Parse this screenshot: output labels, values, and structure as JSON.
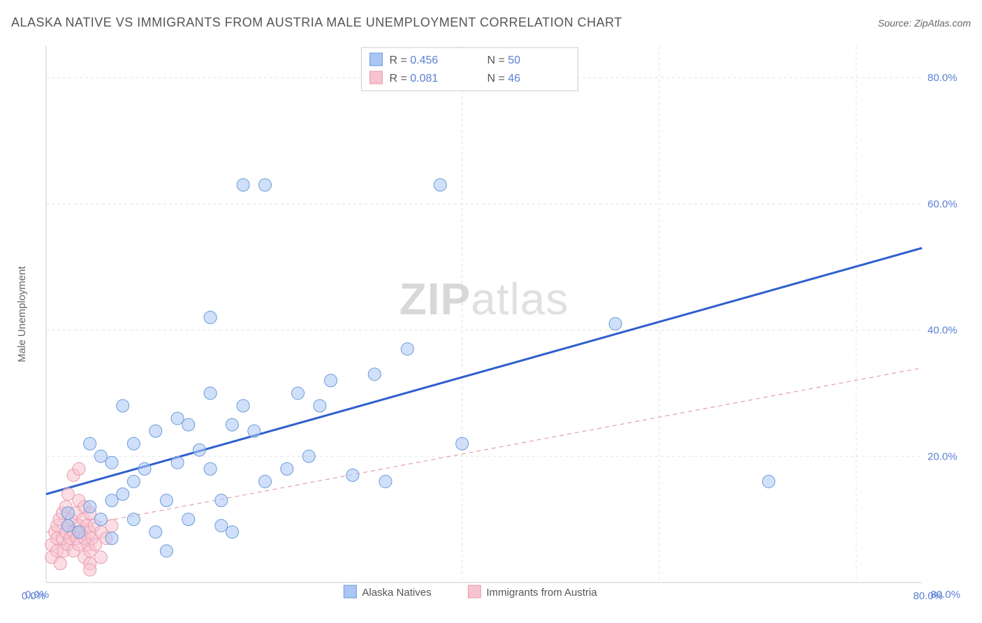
{
  "title": "ALASKA NATIVE VS IMMIGRANTS FROM AUSTRIA MALE UNEMPLOYMENT CORRELATION CHART",
  "source_prefix": "Source: ",
  "source_name": "ZipAtlas.com",
  "y_axis_label": "Male Unemployment",
  "watermark_zip": "ZIP",
  "watermark_atlas": "atlas",
  "chart": {
    "type": "scatter",
    "background_color": "#ffffff",
    "plot_border_color": "#cccccc",
    "grid_color": "#e2e2e2",
    "grid_dash": "4,4",
    "axis_label_color": "#666666",
    "tick_label_color": "#5b7fd6",
    "tick_fontsize": 15,
    "title_fontsize": 18,
    "source_fontsize": 14,
    "xlim": [
      0,
      80
    ],
    "ylim": [
      0,
      85
    ],
    "x_ticks": [
      0,
      80
    ],
    "x_tick_labels": [
      "0.0%",
      "80.0%"
    ],
    "y_ticks": [
      20,
      40,
      60,
      80
    ],
    "y_tick_labels": [
      "20.0%",
      "40.0%",
      "60.0%",
      "80.0%"
    ],
    "vertical_gridlines_x": [
      38,
      56,
      74
    ],
    "point_radius": 9,
    "point_opacity": 0.55,
    "series": [
      {
        "name": "Alaska Natives",
        "color_fill": "#a9c6f5",
        "color_stroke": "#6b9bd6",
        "points": [
          [
            2,
            9
          ],
          [
            2,
            11
          ],
          [
            3,
            8
          ],
          [
            4,
            12
          ],
          [
            4,
            22
          ],
          [
            5,
            10
          ],
          [
            5,
            20
          ],
          [
            6,
            7
          ],
          [
            6,
            13
          ],
          [
            6,
            19
          ],
          [
            7,
            28
          ],
          [
            7,
            14
          ],
          [
            8,
            10
          ],
          [
            8,
            22
          ],
          [
            8,
            16
          ],
          [
            9,
            18
          ],
          [
            10,
            24
          ],
          [
            10,
            8
          ],
          [
            11,
            5
          ],
          [
            11,
            13
          ],
          [
            12,
            19
          ],
          [
            12,
            26
          ],
          [
            13,
            10
          ],
          [
            13,
            25
          ],
          [
            14,
            21
          ],
          [
            15,
            18
          ],
          [
            15,
            42
          ],
          [
            15,
            30
          ],
          [
            16,
            13
          ],
          [
            16,
            9
          ],
          [
            17,
            8
          ],
          [
            17,
            25
          ],
          [
            18,
            28
          ],
          [
            18,
            63
          ],
          [
            19,
            24
          ],
          [
            20,
            63
          ],
          [
            20,
            16
          ],
          [
            22,
            18
          ],
          [
            23,
            30
          ],
          [
            24,
            20
          ],
          [
            25,
            28
          ],
          [
            26,
            32
          ],
          [
            28,
            17
          ],
          [
            30,
            33
          ],
          [
            31,
            16
          ],
          [
            36,
            63
          ],
          [
            33,
            37
          ],
          [
            38,
            22
          ],
          [
            52,
            41
          ],
          [
            66,
            16
          ]
        ],
        "trend": {
          "x1": 0,
          "y1": 14,
          "x2": 80,
          "y2": 53,
          "color": "#2f5fcf",
          "width": 3,
          "dashed": false
        }
      },
      {
        "name": "Immigrants from Austria",
        "color_fill": "#f7c3d0",
        "color_stroke": "#e89cb0",
        "points": [
          [
            0.5,
            4
          ],
          [
            0.5,
            6
          ],
          [
            0.8,
            8
          ],
          [
            1,
            9
          ],
          [
            1,
            5
          ],
          [
            1,
            7
          ],
          [
            1.2,
            10
          ],
          [
            1.3,
            3
          ],
          [
            1.5,
            11
          ],
          [
            1.5,
            7
          ],
          [
            1.6,
            5
          ],
          [
            1.8,
            8
          ],
          [
            1.8,
            12
          ],
          [
            2,
            9
          ],
          [
            2,
            6
          ],
          [
            2,
            14
          ],
          [
            2.2,
            7
          ],
          [
            2.3,
            10
          ],
          [
            2.5,
            8
          ],
          [
            2.5,
            5
          ],
          [
            2.5,
            17
          ],
          [
            2.7,
            11
          ],
          [
            2.8,
            7
          ],
          [
            3,
            9
          ],
          [
            3,
            13
          ],
          [
            3,
            6
          ],
          [
            3,
            18
          ],
          [
            3.2,
            8
          ],
          [
            3.4,
            10
          ],
          [
            3.5,
            7
          ],
          [
            3.5,
            4
          ],
          [
            3.5,
            12
          ],
          [
            3.7,
            9
          ],
          [
            3.8,
            6
          ],
          [
            4,
            8
          ],
          [
            4,
            11
          ],
          [
            4,
            5
          ],
          [
            4,
            3
          ],
          [
            4,
            2
          ],
          [
            4.2,
            7
          ],
          [
            4.4,
            9
          ],
          [
            4.5,
            6
          ],
          [
            5,
            8
          ],
          [
            5,
            4
          ],
          [
            5.5,
            7
          ],
          [
            6,
            9
          ]
        ],
        "trend": {
          "x1": 0,
          "y1": 8,
          "x2": 80,
          "y2": 34,
          "color": "#e89cb0",
          "width": 1.2,
          "dashed": true,
          "dash": "6,5"
        }
      }
    ],
    "legend_top": {
      "border_color": "#cccccc",
      "rows": [
        {
          "swatch_fill": "#a9c6f5",
          "swatch_stroke": "#6b9bd6",
          "r_label": "R = ",
          "r_value": "0.456",
          "n_label": "N = ",
          "n_value": "50"
        },
        {
          "swatch_fill": "#f7c3d0",
          "swatch_stroke": "#e89cb0",
          "r_label": "R = ",
          "r_value": "0.081",
          "n_label": "N = ",
          "n_value": "46"
        }
      ]
    },
    "legend_bottom": {
      "items": [
        {
          "swatch_fill": "#a9c6f5",
          "swatch_stroke": "#6b9bd6",
          "label": "Alaska Natives"
        },
        {
          "swatch_fill": "#f7c3d0",
          "swatch_stroke": "#e89cb0",
          "label": "Immigrants from Austria"
        }
      ]
    }
  }
}
